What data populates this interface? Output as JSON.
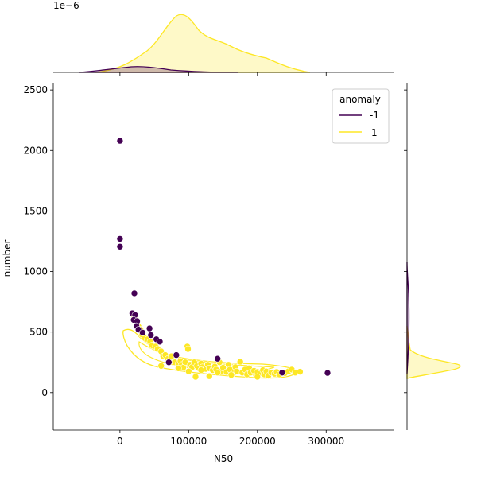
{
  "chart_data": {
    "type": "scatter",
    "subtype": "jointplot",
    "xlabel": "N50",
    "ylabel": "number",
    "xlim": [
      -97000,
      398000
    ],
    "ylim": [
      -310,
      2560
    ],
    "xticks": [
      0,
      100000,
      200000,
      300000
    ],
    "xtick_labels": [
      "0",
      "100000",
      "200000",
      "300000"
    ],
    "yticks": [
      0,
      500,
      1000,
      1500,
      2000,
      2500
    ],
    "ytick_labels": [
      "0",
      "500",
      "1000",
      "1500",
      "2000",
      "2500"
    ],
    "marginal_x_scale_label": "1e−6",
    "grid": false,
    "legend": {
      "title": "anomaly",
      "placement": "top-right",
      "entries": [
        {
          "label": "-1",
          "color": "#440154"
        },
        {
          "label": "1",
          "color": "#fde725"
        }
      ]
    },
    "series": [
      {
        "name": "-1",
        "color": "#440154",
        "points": [
          [
            0,
            2080
          ],
          [
            0,
            1270
          ],
          [
            0,
            1205
          ],
          [
            21000,
            820
          ],
          [
            18000,
            655
          ],
          [
            22000,
            640
          ],
          [
            20000,
            600
          ],
          [
            25000,
            590
          ],
          [
            24000,
            550
          ],
          [
            27000,
            520
          ],
          [
            33000,
            495
          ],
          [
            43000,
            530
          ],
          [
            45000,
            475
          ],
          [
            53000,
            440
          ],
          [
            58000,
            420
          ],
          [
            82000,
            310
          ],
          [
            71000,
            250
          ],
          [
            142000,
            280
          ],
          [
            236000,
            165
          ],
          [
            302000,
            162
          ]
        ]
      },
      {
        "name": "1",
        "color": "#fde725",
        "points": [
          [
            20000,
            640
          ],
          [
            22000,
            610
          ],
          [
            24000,
            580
          ],
          [
            27000,
            545
          ],
          [
            30000,
            520
          ],
          [
            32000,
            480
          ],
          [
            36000,
            450
          ],
          [
            40000,
            440
          ],
          [
            44000,
            420
          ],
          [
            47000,
            390
          ],
          [
            52000,
            380
          ],
          [
            55000,
            360
          ],
          [
            60000,
            340
          ],
          [
            63000,
            300
          ],
          [
            66000,
            310
          ],
          [
            70000,
            280
          ],
          [
            72000,
            260
          ],
          [
            75000,
            300
          ],
          [
            80000,
            250
          ],
          [
            85000,
            240
          ],
          [
            88000,
            260
          ],
          [
            90000,
            230
          ],
          [
            95000,
            250
          ],
          [
            98000,
            380
          ],
          [
            99000,
            360
          ],
          [
            102000,
            230
          ],
          [
            105000,
            210
          ],
          [
            108000,
            250
          ],
          [
            112000,
            220
          ],
          [
            115000,
            200
          ],
          [
            118000,
            240
          ],
          [
            120000,
            210
          ],
          [
            125000,
            195
          ],
          [
            128000,
            230
          ],
          [
            130000,
            200
          ],
          [
            135000,
            185
          ],
          [
            138000,
            215
          ],
          [
            140000,
            190
          ],
          [
            145000,
            250
          ],
          [
            148000,
            180
          ],
          [
            150000,
            205
          ],
          [
            155000,
            170
          ],
          [
            158000,
            230
          ],
          [
            160000,
            190
          ],
          [
            165000,
            160
          ],
          [
            168000,
            210
          ],
          [
            170000,
            175
          ],
          [
            175000,
            255
          ],
          [
            178000,
            165
          ],
          [
            182000,
            190
          ],
          [
            185000,
            150
          ],
          [
            188000,
            200
          ],
          [
            190000,
            165
          ],
          [
            195000,
            180
          ],
          [
            198000,
            145
          ],
          [
            200000,
            170
          ],
          [
            205000,
            160
          ],
          [
            208000,
            185
          ],
          [
            210000,
            150
          ],
          [
            213000,
            175
          ],
          [
            216000,
            140
          ],
          [
            220000,
            165
          ],
          [
            225000,
            155
          ],
          [
            228000,
            170
          ],
          [
            232000,
            150
          ],
          [
            240000,
            160
          ],
          [
            245000,
            175
          ],
          [
            250000,
            190
          ],
          [
            255000,
            165
          ],
          [
            262000,
            172
          ],
          [
            110000,
            130
          ],
          [
            130000,
            135
          ],
          [
            60000,
            220
          ],
          [
            92000,
            205
          ],
          [
            118000,
            185
          ],
          [
            142000,
            165
          ],
          [
            162000,
            145
          ],
          [
            200000,
            130
          ],
          [
            85000,
            200
          ],
          [
            100000,
            175
          ]
        ]
      }
    ]
  }
}
